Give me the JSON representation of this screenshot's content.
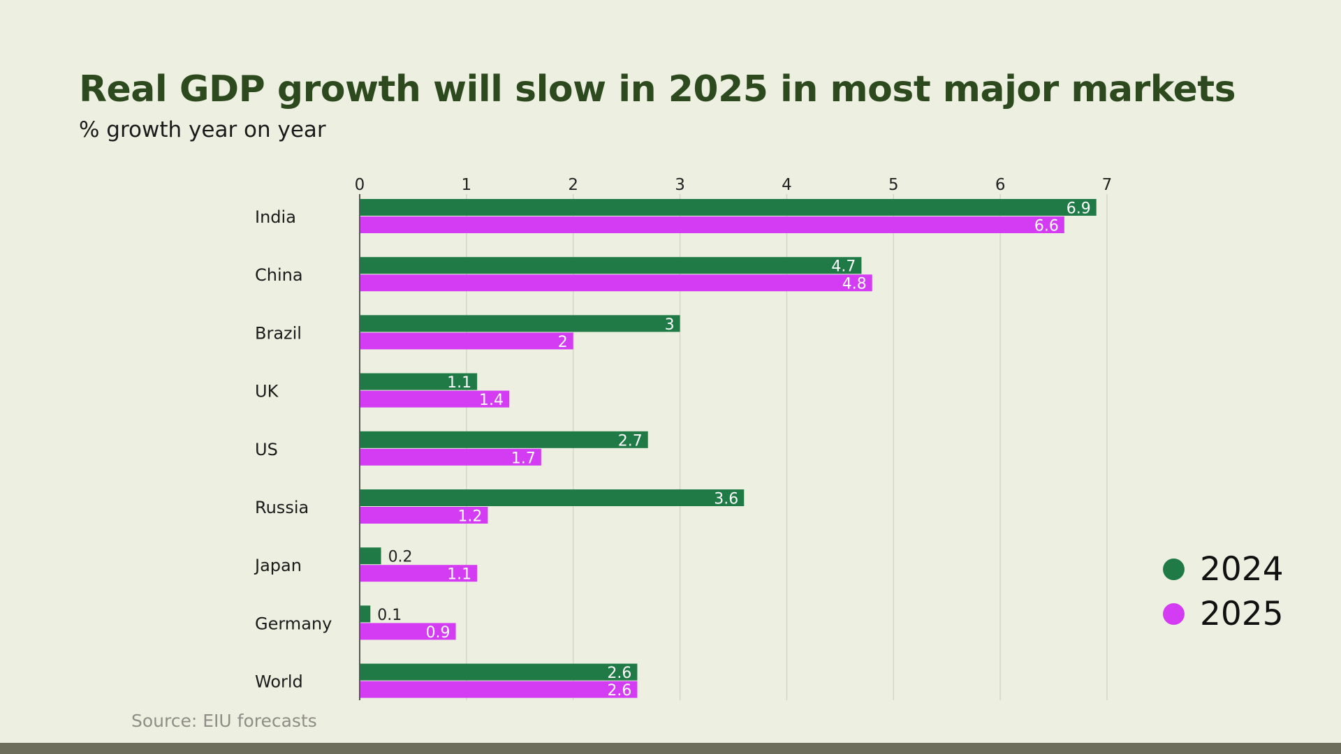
{
  "chart_data": {
    "type": "bar",
    "orientation": "horizontal",
    "title": "Real GDP growth will slow in 2025 in most major markets",
    "subtitle": "% growth year on year",
    "categories": [
      "India",
      "China",
      "Brazil",
      "UK",
      "US",
      "Russia",
      "Japan",
      "Germany",
      "World"
    ],
    "series": [
      {
        "name": "2024",
        "color": "#1f7a45",
        "values": [
          6.9,
          4.7,
          3,
          1.1,
          2.7,
          3.6,
          0.2,
          0.1,
          2.6
        ]
      },
      {
        "name": "2025",
        "color": "#d33cf2",
        "values": [
          6.6,
          4.8,
          2,
          1.4,
          1.7,
          1.2,
          1.1,
          0.9,
          2.6
        ]
      }
    ],
    "value_labels": [
      [
        "6.9",
        "4.7",
        "3",
        "1.1",
        "2.7",
        "3.6",
        "0.2",
        "0.1",
        "2.6"
      ],
      [
        "6.6",
        "4.8",
        "2",
        "1.4",
        "1.7",
        "1.2",
        "1.1",
        "0.9",
        "2.6"
      ]
    ],
    "xlim": [
      0,
      7
    ],
    "xticks": [
      "0",
      "1",
      "2",
      "3",
      "4",
      "5",
      "6",
      "7"
    ],
    "xaxis_position": "top",
    "grid": true,
    "legend_position": "right"
  },
  "source": "Source: EIU forecasts"
}
